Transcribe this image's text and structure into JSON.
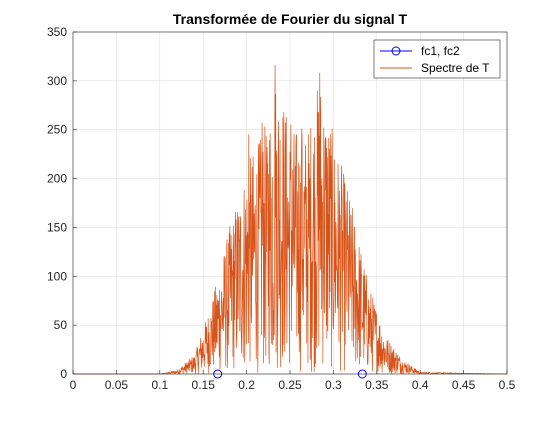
{
  "chart_data": {
    "type": "line",
    "title": "Transformée de Fourier du signal T",
    "xlabel": "",
    "ylabel": "",
    "xlim": [
      0,
      0.5
    ],
    "ylim": [
      0,
      350
    ],
    "xticks": [
      0,
      0.05,
      0.1,
      0.15,
      0.2,
      0.25,
      0.3,
      0.35,
      0.4,
      0.45,
      0.5
    ],
    "xtick_labels": [
      "0",
      "0.05",
      "0.1",
      "0.15",
      "0.2",
      "0.25",
      "0.3",
      "0.35",
      "0.4",
      "0.45",
      "0.5"
    ],
    "yticks": [
      0,
      50,
      100,
      150,
      200,
      250,
      300,
      350
    ],
    "ytick_labels": [
      "0",
      "50",
      "100",
      "150",
      "200",
      "250",
      "300",
      "350"
    ],
    "grid": true,
    "legend_position": "top-right",
    "series": [
      {
        "name": "fc1, fc2",
        "color": "#0000ff",
        "style": "markers-circle",
        "x": [
          0.1667,
          0.3333
        ],
        "y": [
          0,
          0
        ]
      },
      {
        "name": "Spectre de T",
        "color": "#d95319",
        "style": "line",
        "envelope": {
          "x": [
            0,
            0.1,
            0.12,
            0.14,
            0.16,
            0.18,
            0.2,
            0.22,
            0.235,
            0.25,
            0.27,
            0.285,
            0.3,
            0.32,
            0.34,
            0.36,
            0.38,
            0.4,
            0.5
          ],
          "y": [
            0,
            0,
            4,
            20,
            75,
            150,
            215,
            250,
            316,
            255,
            250,
            310,
            245,
            180,
            95,
            40,
            15,
            2,
            0
          ]
        },
        "peaks": [
          {
            "x": 0.2327,
            "y": 316
          },
          {
            "x": 0.2843,
            "y": 308
          },
          {
            "x": 0.2178,
            "y": 257
          },
          {
            "x": 0.2512,
            "y": 255
          },
          {
            "x": 0.2635,
            "y": 251
          },
          {
            "x": 0.2024,
            "y": 245
          },
          {
            "x": 0.2963,
            "y": 245
          },
          {
            "x": 0.2237,
            "y": 232
          }
        ]
      }
    ]
  }
}
